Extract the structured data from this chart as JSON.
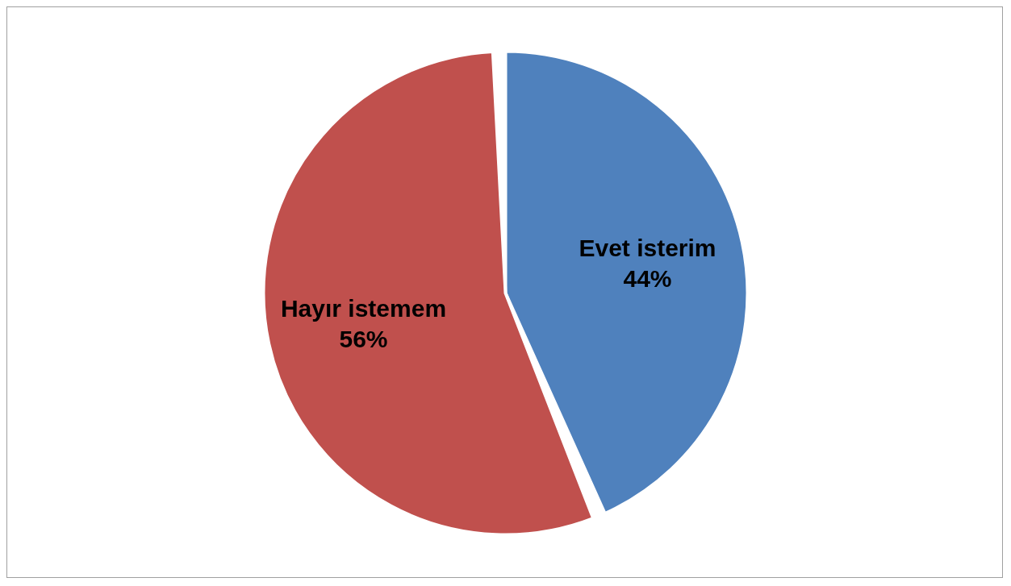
{
  "chart_data": {
    "type": "pie",
    "categories": [
      "Evet isterim",
      "Hayır istemem"
    ],
    "values": [
      44,
      56
    ],
    "colors": [
      "#4f81bd",
      "#c0504d"
    ],
    "value_labels": [
      "44%",
      "56%"
    ],
    "legend": false
  }
}
